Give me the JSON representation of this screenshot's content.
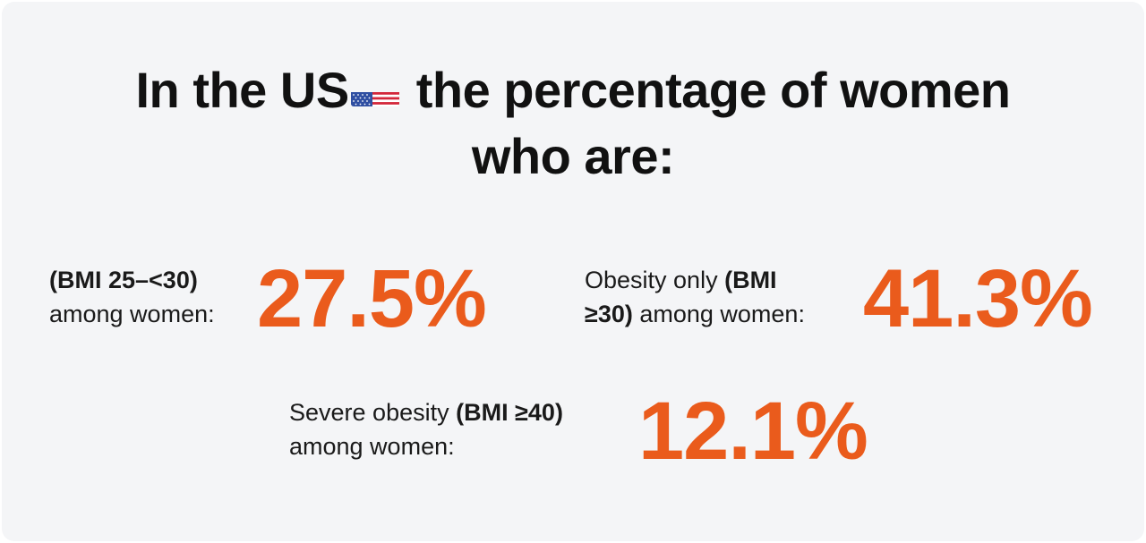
{
  "heading": {
    "line1_before_flag": "In the US",
    "line1_after_flag": " the percentage of women",
    "line2": "who are:",
    "flag_icon": "us-flag-icon"
  },
  "stats": [
    {
      "label_plain_before": "",
      "label_bold": "(BMI 25–<30)",
      "label_plain_after": "among women:",
      "value": "27.5%"
    },
    {
      "label_plain_before": "Obesity only ",
      "label_bold_1": "(BMI",
      "label_bold_2": "≥30)",
      "label_plain_after": " among women:",
      "value": "41.3%"
    },
    {
      "label_plain_before": "Severe obesity ",
      "label_bold": "(BMI ≥40)",
      "label_plain_after": "among women:",
      "value": "12.1%"
    }
  ],
  "colors": {
    "accent": "#ea5b1c",
    "text": "#111111",
    "background": "#f4f5f7"
  }
}
